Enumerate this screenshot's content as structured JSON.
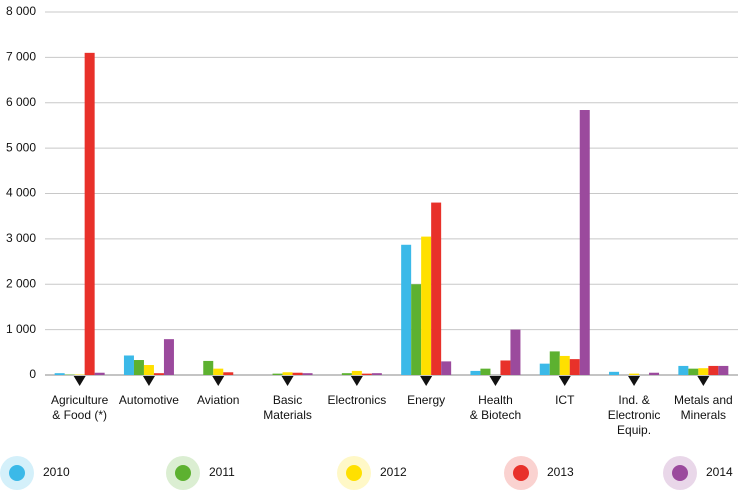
{
  "chart_data": {
    "type": "bar",
    "categories": [
      [
        "Agriculture",
        "& Food (*)"
      ],
      [
        "Automotive"
      ],
      [
        "Aviation"
      ],
      [
        "Basic",
        "Materials"
      ],
      [
        "Electronics"
      ],
      [
        "Energy"
      ],
      [
        "Health",
        "& Biotech"
      ],
      [
        "ICT"
      ],
      [
        "Ind. &",
        "Electronic",
        "Equip."
      ],
      [
        "Metals and",
        "Minerals"
      ]
    ],
    "series": [
      {
        "name": "2010",
        "color": "#3bb9e8",
        "values": [
          40,
          430,
          0,
          0,
          0,
          2870,
          90,
          250,
          70,
          200
        ]
      },
      {
        "name": "2011",
        "color": "#5db130",
        "values": [
          10,
          330,
          310,
          30,
          40,
          2000,
          140,
          520,
          0,
          140
        ]
      },
      {
        "name": "2012",
        "color": "#ffe000",
        "values": [
          10,
          220,
          140,
          60,
          90,
          3050,
          0,
          420,
          30,
          150
        ]
      },
      {
        "name": "2013",
        "color": "#e8312a",
        "values": [
          7100,
          40,
          60,
          50,
          30,
          3800,
          320,
          350,
          0,
          200
        ]
      },
      {
        "name": "2014",
        "color": "#9b4a9d",
        "values": [
          50,
          790,
          0,
          40,
          40,
          300,
          1000,
          5840,
          50,
          200
        ]
      }
    ],
    "ylim": [
      0,
      8000
    ],
    "yticks": [
      0,
      {
        "value": 1000,
        "label": "1 000"
      },
      {
        "value": 2000,
        "label": "2 000"
      },
      {
        "value": 3000,
        "label": "3 000"
      },
      {
        "value": 4000,
        "label": "4 000"
      },
      {
        "value": 5000,
        "label": "5 000"
      },
      {
        "value": 6000,
        "label": "6 000"
      },
      {
        "value": 7000,
        "label": "7 000"
      },
      {
        "value": 8000,
        "label": "8 000"
      }
    ],
    "grid": true
  }
}
